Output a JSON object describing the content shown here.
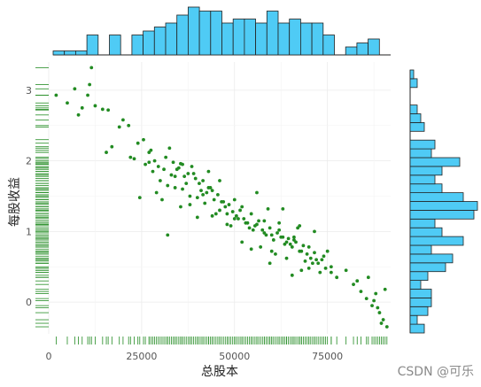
{
  "chart_data": {
    "type": "scatter",
    "title": "",
    "xlabel": "总股本",
    "ylabel": "每股收益",
    "xlim": [
      0,
      92000
    ],
    "ylim": [
      -0.45,
      3.4
    ],
    "x_ticks": [
      0,
      25000,
      50000,
      75000
    ],
    "x_tick_labels": [
      "0",
      "25000",
      "50000",
      "75000"
    ],
    "y_ticks": [
      0,
      1,
      2,
      3
    ],
    "y_tick_labels": [
      "0",
      "1",
      "2",
      "3"
    ],
    "grid": true,
    "colors": {
      "points": "#228b22",
      "rug": "#228b22",
      "hist_fill": "#4fcbf5",
      "hist_edge": "#222222",
      "grid": "#ebebeb"
    },
    "x_histogram": {
      "bin_edges": [
        0,
        3000,
        6000,
        9000,
        12000,
        15000,
        18000,
        21000,
        24000,
        27000,
        30000,
        33000,
        36000,
        39000,
        42000,
        45000,
        48000,
        51000,
        54000,
        57000,
        60000,
        63000,
        66000,
        69000,
        72000,
        75000,
        78000,
        81000,
        84000,
        87000,
        90000
      ],
      "counts": [
        1,
        1,
        1,
        5,
        0,
        5,
        0,
        5,
        6,
        7,
        8,
        10,
        12,
        11,
        11,
        8,
        9,
        9,
        8,
        11,
        8,
        9,
        8,
        8,
        5,
        0,
        2,
        3,
        4,
        0
      ]
    },
    "y_histogram": {
      "bin_edges": [
        -0.4,
        -0.28,
        -0.16,
        -0.04,
        0.08,
        0.2,
        0.32,
        0.44,
        0.56,
        0.68,
        0.8,
        0.92,
        1.04,
        1.16,
        1.28,
        1.4,
        1.52,
        1.64,
        1.76,
        1.88,
        2.0,
        2.12,
        2.24,
        2.36,
        2.48,
        2.6,
        2.72,
        2.84,
        2.96,
        3.08,
        3.2
      ],
      "counts": [
        4,
        2,
        5,
        6,
        6,
        3,
        5,
        10,
        12,
        6,
        15,
        9,
        7,
        18,
        19,
        15,
        9,
        7,
        9,
        14,
        6,
        7,
        0,
        4,
        3,
        2,
        0,
        0,
        2,
        1
      ]
    },
    "points": {
      "x": [
        2000,
        5000,
        7000,
        9000,
        10500,
        11500,
        12500,
        14500,
        16000,
        17000,
        20000,
        21500,
        24000,
        25500,
        8000,
        11000,
        15500,
        19000,
        23000,
        27000,
        28500,
        29500,
        31000,
        32500,
        33500,
        34500,
        35500,
        36500,
        37500,
        38500,
        39500,
        40500,
        41500,
        42500,
        43500,
        44500,
        45500,
        46500,
        47500,
        48500,
        49500,
        50500,
        51500,
        52500,
        53500,
        54500,
        55500,
        56500,
        57500,
        58500,
        59500,
        60500,
        61500,
        62500,
        63500,
        64500,
        65500,
        66500,
        67500,
        68500,
        69500,
        70500,
        71500,
        72500,
        73500,
        74500,
        76000,
        77500,
        26000,
        28000,
        30000,
        32000,
        34000,
        36000,
        38000,
        40000,
        42000,
        44000,
        46000,
        48000,
        50000,
        52000,
        54000,
        56000,
        58000,
        60000,
        62000,
        64000,
        66000,
        68000,
        70000,
        72000,
        74000,
        76000,
        27500,
        31500,
        35000,
        39000,
        43000,
        47000,
        51000,
        55000,
        59000,
        63000,
        67000,
        71000,
        75000,
        30500,
        36000,
        41000,
        46000,
        53000,
        57000,
        61000,
        65000,
        69000,
        73000,
        32000,
        37000,
        45000,
        49000,
        58000,
        62000,
        66000,
        70000,
        33000,
        38000,
        44000,
        52000,
        60000,
        64000,
        68000,
        24500,
        29000,
        35500,
        41500,
        48000,
        54500,
        59500,
        65500,
        22000,
        27000,
        34000,
        40000,
        43000,
        50000,
        56000,
        63000,
        67500,
        71500,
        80000,
        82000,
        84000,
        85500,
        87000,
        88000,
        89000,
        90000,
        91000,
        86000,
        88500,
        90500,
        83000,
        87500,
        89500
      ],
      "y": [
        2.93,
        2.82,
        3.02,
        2.75,
        2.93,
        3.32,
        2.78,
        2.73,
        2.72,
        2.2,
        2.58,
        2.5,
        2.25,
        2.3,
        2.65,
        3.08,
        2.12,
        2.48,
        2.03,
        2.12,
        2.0,
        1.92,
        1.88,
        2.18,
        1.98,
        1.88,
        1.96,
        1.78,
        1.82,
        1.92,
        1.75,
        1.68,
        1.72,
        1.55,
        1.62,
        1.45,
        1.52,
        1.42,
        1.35,
        1.38,
        1.28,
        1.22,
        1.3,
        1.18,
        1.12,
        1.25,
        1.08,
        1.15,
        1.02,
        0.95,
        1.05,
        0.88,
        0.98,
        0.92,
        0.82,
        0.9,
        0.78,
        0.85,
        0.72,
        0.8,
        0.68,
        0.62,
        0.7,
        0.55,
        0.6,
        0.48,
        0.42,
        0.35,
        1.95,
        1.85,
        1.72,
        1.65,
        1.78,
        1.6,
        1.5,
        1.48,
        1.4,
        1.58,
        1.3,
        1.25,
        1.18,
        1.35,
        1.05,
        1.1,
        0.98,
        0.95,
        1.12,
        0.85,
        0.88,
        0.72,
        0.78,
        0.6,
        0.65,
        0.5,
        2.15,
        2.05,
        1.9,
        1.82,
        1.62,
        1.42,
        1.18,
        1.02,
        1.32,
        0.92,
        1.05,
        0.55,
        0.72,
        1.45,
        1.95,
        1.58,
        1.72,
        1.12,
        0.78,
        0.68,
        0.82,
        0.58,
        0.42,
        0.95,
        1.68,
        1.25,
        1.08,
        1.15,
        1.02,
        0.92,
        0.48,
        1.8,
        1.38,
        1.22,
        0.85,
        0.72,
        0.62,
        0.45,
        1.48,
        1.55,
        1.35,
        1.52,
        1.1,
        0.75,
        0.55,
        0.38,
        2.05,
        1.98,
        1.62,
        1.2,
        1.85,
        1.45,
        1.55,
        1.32,
        1.08,
        1.0,
        0.45,
        0.25,
        0.15,
        0.05,
        -0.05,
        0.12,
        -0.15,
        -0.25,
        -0.35,
        0.35,
        -0.08,
        0.18,
        0.3,
        0.02,
        -0.3
      ]
    }
  },
  "watermark": "CSDN @可乐"
}
